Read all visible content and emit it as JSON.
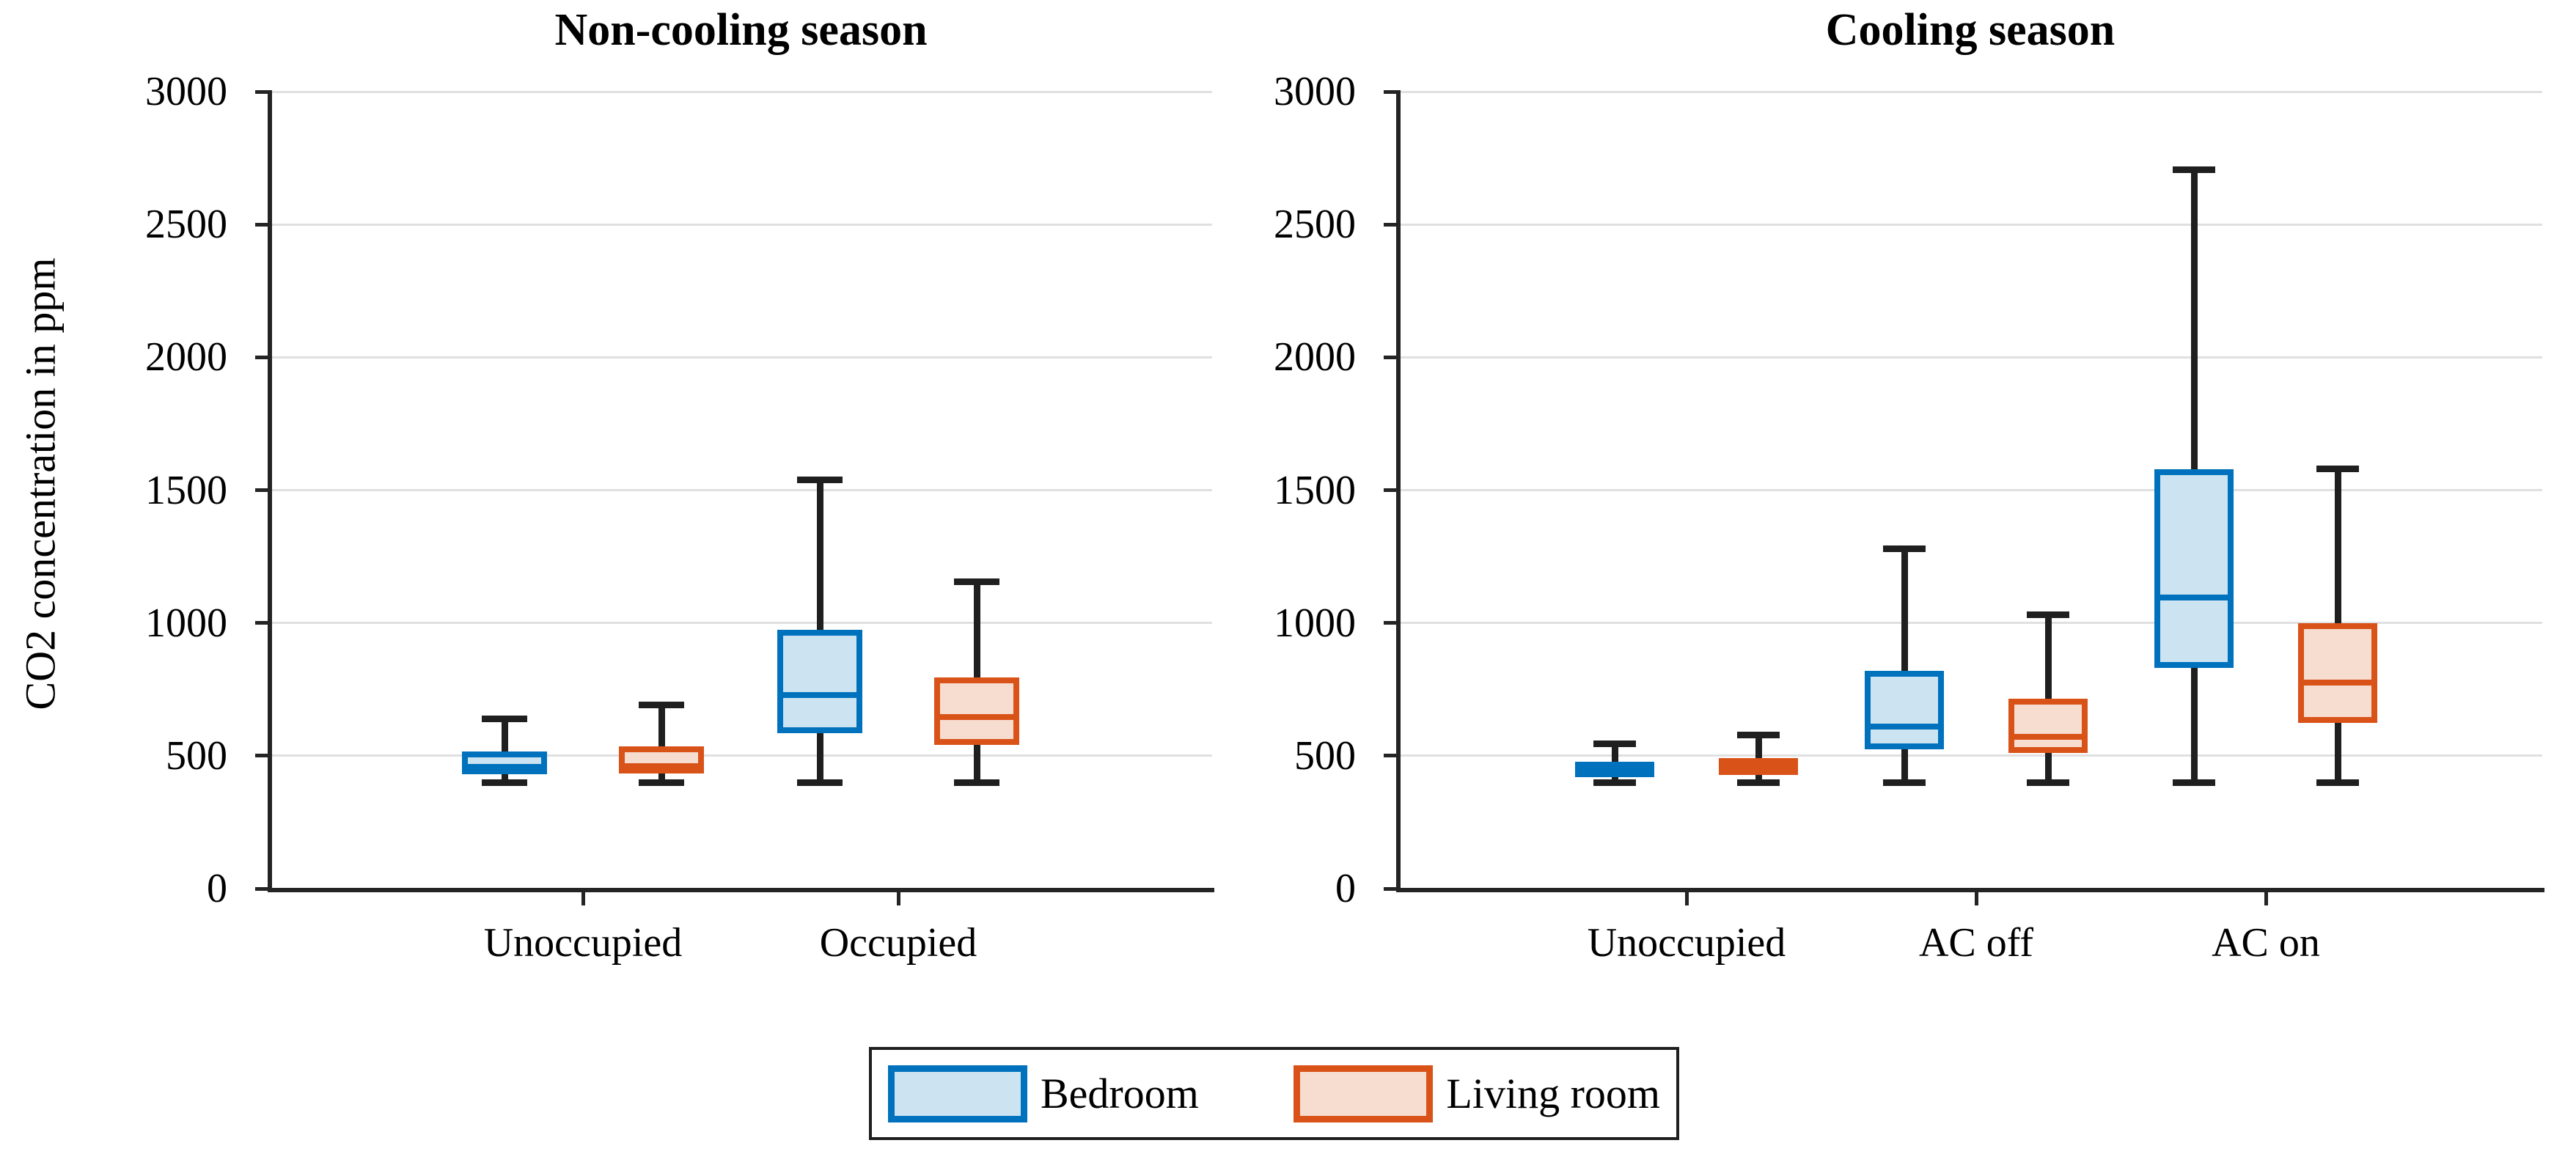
{
  "figure_title": "",
  "ylabel": "CO2 concentration in ppm",
  "colors": {
    "bedroom_edge": "#0072BD",
    "bedroom_fill": "#CCE3F2",
    "living_edge": "#D95319",
    "living_fill": "#F7DDD0",
    "whisker": "#1f1f1f",
    "grid": "#e0e0e0",
    "axis": "#242424",
    "text": "#000000",
    "background": "#ffffff"
  },
  "legend": {
    "items": [
      {
        "label": "Bedroom",
        "series": "bedroom"
      },
      {
        "label": "Living room",
        "series": "living"
      }
    ]
  },
  "chart_data": [
    {
      "type": "box",
      "title": "Non-cooling season",
      "categories": [
        "Unoccupied",
        "Occupied"
      ],
      "ylabel": "CO2 concentration in ppm",
      "ylim": [
        0,
        3000
      ],
      "yticks": [
        0,
        500,
        1000,
        1500,
        2000,
        2500,
        3000
      ],
      "grid": "horizontal",
      "series": [
        {
          "name": "Bedroom",
          "boxes": [
            {
              "min": 400,
              "q1": 430,
              "median": 458,
              "q3": 515,
              "max": 640
            },
            {
              "min": 400,
              "q1": 585,
              "median": 728,
              "q3": 975,
              "max": 1540
            }
          ]
        },
        {
          "name": "Living room",
          "boxes": [
            {
              "min": 400,
              "q1": 432,
              "median": 462,
              "q3": 535,
              "max": 690
            },
            {
              "min": 400,
              "q1": 540,
              "median": 645,
              "q3": 795,
              "max": 1155
            }
          ]
        }
      ]
    },
    {
      "type": "box",
      "title": "Cooling season",
      "categories": [
        "Unoccupied",
        "AC off",
        "AC on"
      ],
      "ylabel": "CO2 concentration in ppm",
      "ylim": [
        0,
        3000
      ],
      "yticks": [
        0,
        500,
        1000,
        1500,
        2000,
        2500,
        3000
      ],
      "grid": "horizontal",
      "series": [
        {
          "name": "Bedroom",
          "boxes": [
            {
              "min": 400,
              "q1": 420,
              "median": 450,
              "q3": 478,
              "max": 545
            },
            {
              "min": 400,
              "q1": 525,
              "median": 610,
              "q3": 820,
              "max": 1280
            },
            {
              "min": 400,
              "q1": 830,
              "median": 1095,
              "q3": 1580,
              "max": 2705
            }
          ]
        },
        {
          "name": "Living room",
          "boxes": [
            {
              "min": 400,
              "q1": 428,
              "median": 458,
              "q3": 490,
              "max": 578
            },
            {
              "min": 400,
              "q1": 510,
              "median": 572,
              "q3": 715,
              "max": 1030
            },
            {
              "min": 400,
              "q1": 625,
              "median": 775,
              "q3": 1000,
              "max": 1580
            }
          ]
        }
      ]
    }
  ]
}
